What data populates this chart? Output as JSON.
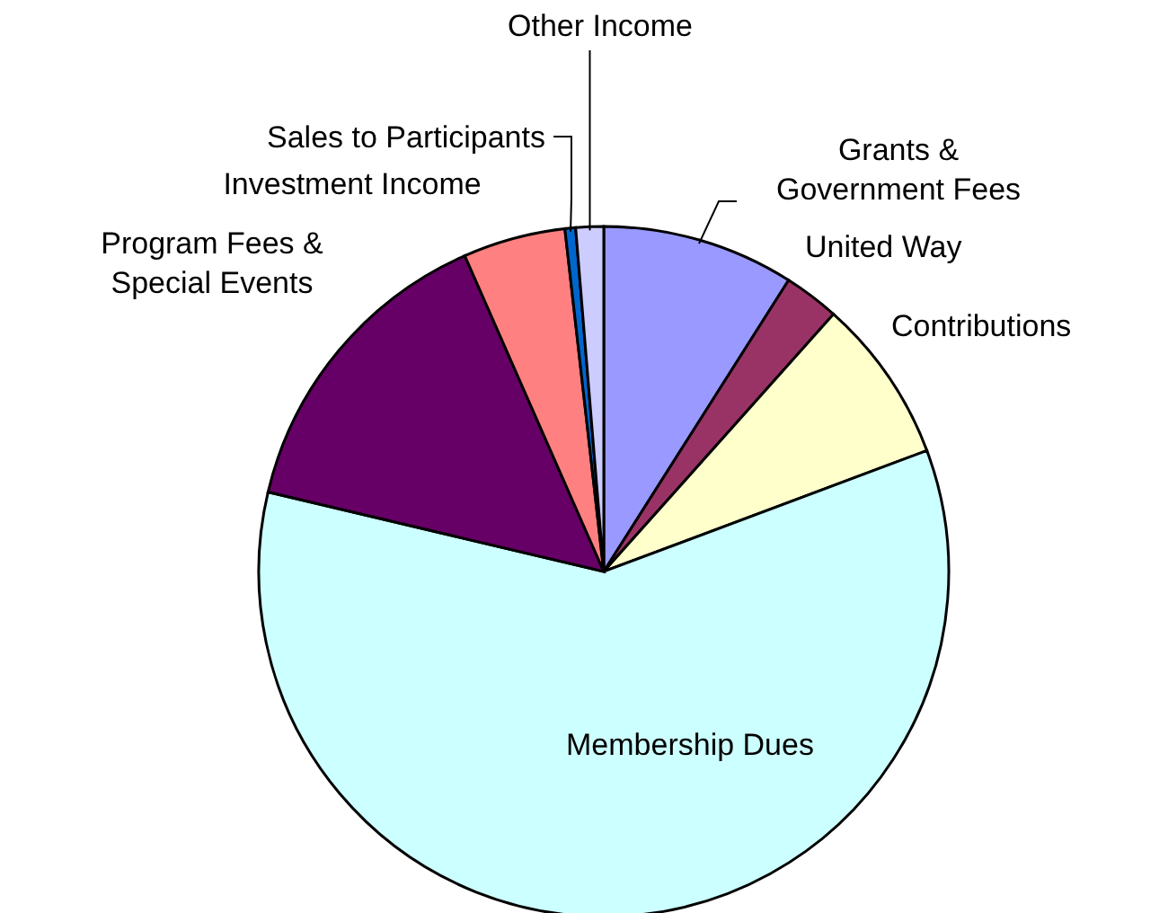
{
  "chart_data": {
    "type": "pie",
    "categories": [
      "Grants &\nGovernment Fees",
      "United Way",
      "Contributions",
      "Membership Dues",
      "Program Fees &\nSpecial Events",
      "Investment Income",
      "Sales to Participants",
      "Other Income"
    ],
    "values": [
      9,
      2.6,
      7.7,
      59.4,
      14.7,
      4.8,
      0.5,
      1.3
    ],
    "colors": [
      "#9999ff",
      "#993366",
      "#ffffcc",
      "#ccffff",
      "#660066",
      "#ff8080",
      "#0066cc",
      "#ccccff"
    ]
  }
}
